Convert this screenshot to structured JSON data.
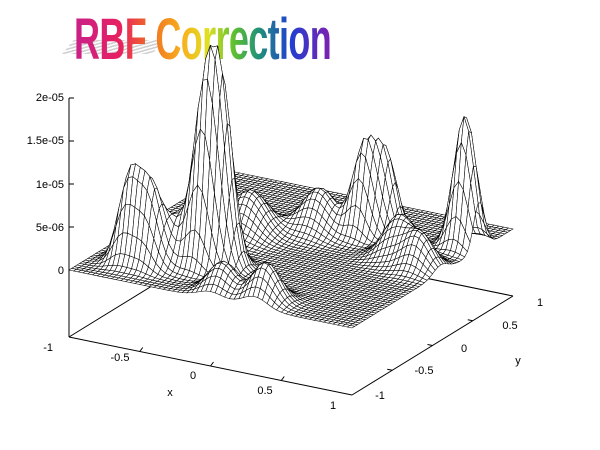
{
  "chart_data": {
    "type": "surface",
    "title": "RBF Correction",
    "xlabel": "x",
    "ylabel": "y",
    "zlabel": "",
    "xlim": [
      -1,
      1
    ],
    "ylim": [
      -1,
      1
    ],
    "zlim": [
      0,
      2e-05
    ],
    "x_ticks": [
      "-1",
      "-0.5",
      "0",
      "0.5",
      "1"
    ],
    "y_ticks": [
      "-1",
      "-0.5",
      "0",
      "0.5",
      "1"
    ],
    "z_ticks": [
      "0",
      "5e-06",
      "1e-05",
      "1.5e-05",
      "2e-05"
    ],
    "grid": false,
    "style": "hidden-line wireframe",
    "line_color": "#000000",
    "peaks": [
      {
        "x": -0.74,
        "y": -0.7,
        "z": 1e-05,
        "width": 0.07
      },
      {
        "x": -0.6,
        "y": -0.7,
        "z": 8e-06,
        "width": 0.07
      },
      {
        "x": -0.3,
        "y": -0.55,
        "z": 1.8e-05,
        "width": 0.07
      },
      {
        "x": -0.21,
        "y": -0.48,
        "z": 1.85e-05,
        "width": 0.07
      },
      {
        "x": 0.27,
        "y": 0.43,
        "z": 1e-05,
        "width": 0.07
      },
      {
        "x": 0.37,
        "y": 0.53,
        "z": 9e-06,
        "width": 0.07
      },
      {
        "x": 0.9,
        "y": 0.58,
        "z": 1.55e-05,
        "width": 0.07
      },
      {
        "x": -0.36,
        "y": 0.12,
        "z": 5e-06,
        "width": 0.12
      },
      {
        "x": -0.01,
        "y": 0.37,
        "z": 5e-06,
        "width": 0.11
      },
      {
        "x": 0.0,
        "y": -0.85,
        "z": 3.5e-06,
        "width": 0.09
      },
      {
        "x": 0.31,
        "y": -0.86,
        "z": 4.5e-06,
        "width": 0.09
      },
      {
        "x": -0.5,
        "y": -0.56,
        "z": 5e-06,
        "width": 0.1
      },
      {
        "x": 0.85,
        "y": 0.1,
        "z": 4e-06,
        "width": 0.09
      },
      {
        "x": 0.65,
        "y": 0.21,
        "z": 5e-06,
        "width": 0.1
      }
    ]
  }
}
